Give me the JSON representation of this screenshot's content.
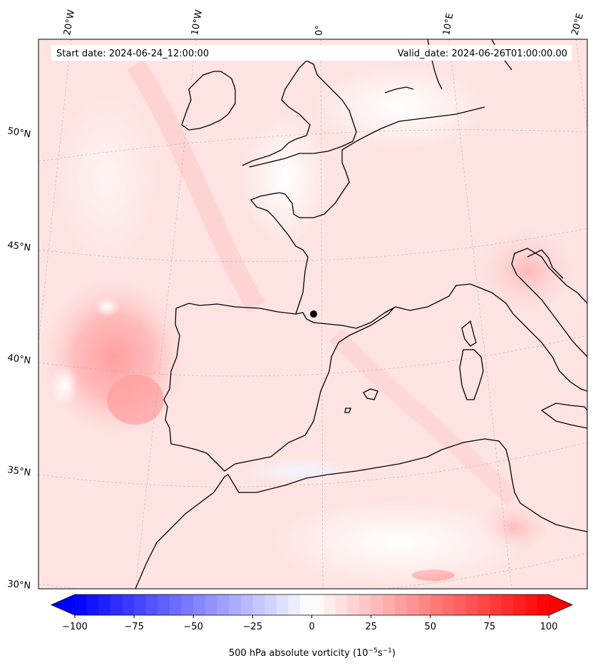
{
  "map": {
    "start_date": "Start date: 2024-06-24_12:00:00",
    "valid_date": "Valid_date: 2024-06-26T01:00:00.00",
    "lon_labels": [
      "20°W",
      "10°W",
      "0°",
      "10°E",
      "20°E"
    ],
    "lat_labels": [
      "50°N",
      "45°N",
      "40°N",
      "35°N",
      "30°N"
    ]
  },
  "colorbar": {
    "label": "500 hPa absolute vorticity (10",
    "label_exp1": "−5",
    "label_mid": "s",
    "label_exp2": "−1",
    "label_end": ")",
    "ticks": [
      "−100",
      "−75",
      "−50",
      "−25",
      "0",
      "25",
      "50",
      "75",
      "100"
    ],
    "min": -100,
    "max": 100,
    "low_color": "#0000ff",
    "high_color": "#ff0000"
  },
  "colors": {
    "background_field": "#fde4e2",
    "coastline": "#000000",
    "gridline": "#b0b0b0"
  }
}
